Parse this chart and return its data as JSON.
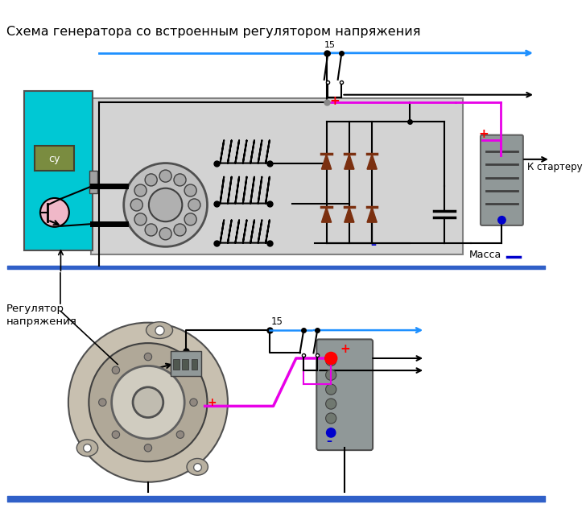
{
  "title": "Схема генератора со встроенным регулятором напряжения",
  "title_fontsize": 11.5,
  "title_color": "#000000",
  "background_color": "#ffffff",
  "fig_width": 7.28,
  "fig_height": 6.57,
  "massa_text": "Масса",
  "k_starter_text": "К стартеру",
  "regulator_text": "Регулятор\nнапряжения",
  "su_text": "су",
  "label_15": "15",
  "cyan_box_color": "#00c8d4",
  "gray_box_color": "#d3d3d3",
  "dark_gray_color": "#808080",
  "brown_diode_color": "#7B3010",
  "pink_line_color": "#e800e8",
  "blue_line_color": "#0000cc",
  "blue_arrow_color": "#1e90ff",
  "black_color": "#000000",
  "red_color": "#ff0000",
  "steel_color": "#b8b8b8",
  "ground_bar_color": "#3060c8",
  "su_box_color": "#7a8c40",
  "transistor_fill": "#f0b8c8",
  "rotor_fill": "#c0c0c0",
  "battery_fill": "#909898",
  "battery_edge": "#606060"
}
